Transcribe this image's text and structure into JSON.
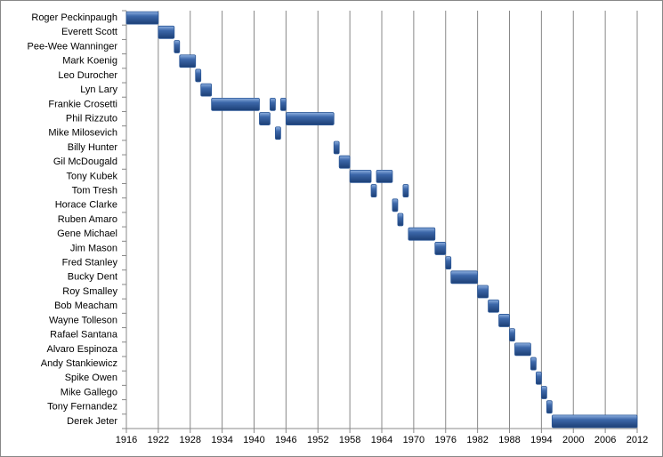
{
  "chart_data": {
    "type": "gantt",
    "tasks": [
      {
        "name": "Roger Peckinpaugh",
        "spans": [
          [
            1916,
            1922
          ]
        ]
      },
      {
        "name": "Everett Scott",
        "spans": [
          [
            1922,
            1925
          ]
        ]
      },
      {
        "name": "Pee-Wee Wanninger",
        "spans": [
          [
            1925,
            1926
          ]
        ]
      },
      {
        "name": "Mark Koenig",
        "spans": [
          [
            1926,
            1929
          ]
        ]
      },
      {
        "name": "Leo Durocher",
        "spans": [
          [
            1929,
            1930
          ]
        ]
      },
      {
        "name": "Lyn Lary",
        "spans": [
          [
            1930,
            1932
          ]
        ]
      },
      {
        "name": "Frankie Crosetti",
        "spans": [
          [
            1932,
            1941
          ],
          [
            1943,
            1944
          ],
          [
            1945,
            1946
          ]
        ]
      },
      {
        "name": "Phil Rizzuto",
        "spans": [
          [
            1941,
            1943
          ],
          [
            1946,
            1955
          ]
        ]
      },
      {
        "name": "Mike Milosevich",
        "spans": [
          [
            1944,
            1945
          ]
        ]
      },
      {
        "name": "Billy Hunter",
        "spans": [
          [
            1955,
            1956
          ]
        ]
      },
      {
        "name": "Gil McDougald",
        "spans": [
          [
            1956,
            1958
          ]
        ]
      },
      {
        "name": "Tony Kubek",
        "spans": [
          [
            1958,
            1962
          ],
          [
            1963,
            1966
          ]
        ]
      },
      {
        "name": "Tom Tresh",
        "spans": [
          [
            1962,
            1963
          ],
          [
            1968,
            1969
          ]
        ]
      },
      {
        "name": "Horace Clarke",
        "spans": [
          [
            1966,
            1967
          ]
        ]
      },
      {
        "name": "Ruben Amaro",
        "spans": [
          [
            1967,
            1968
          ]
        ]
      },
      {
        "name": "Gene Michael",
        "spans": [
          [
            1969,
            1974
          ]
        ]
      },
      {
        "name": "Jim Mason",
        "spans": [
          [
            1974,
            1976
          ]
        ]
      },
      {
        "name": "Fred Stanley",
        "spans": [
          [
            1976,
            1977
          ]
        ]
      },
      {
        "name": "Bucky Dent",
        "spans": [
          [
            1977,
            1982
          ]
        ]
      },
      {
        "name": "Roy Smalley",
        "spans": [
          [
            1982,
            1984
          ]
        ]
      },
      {
        "name": "Bob Meacham",
        "spans": [
          [
            1984,
            1986
          ]
        ]
      },
      {
        "name": "Wayne Tolleson",
        "spans": [
          [
            1986,
            1988
          ]
        ]
      },
      {
        "name": "Rafael Santana",
        "spans": [
          [
            1988,
            1989
          ]
        ]
      },
      {
        "name": "Alvaro Espinoza",
        "spans": [
          [
            1989,
            1992
          ]
        ]
      },
      {
        "name": "Andy Stankiewicz",
        "spans": [
          [
            1992,
            1993
          ]
        ]
      },
      {
        "name": "Spike Owen",
        "spans": [
          [
            1993,
            1994
          ]
        ]
      },
      {
        "name": "Mike Gallego",
        "spans": [
          [
            1994,
            1995
          ]
        ]
      },
      {
        "name": "Tony Fernandez",
        "spans": [
          [
            1995,
            1996
          ]
        ]
      },
      {
        "name": "Derek Jeter",
        "spans": [
          [
            1996,
            2012
          ]
        ]
      }
    ],
    "color": "#2b5797",
    "xlim": [
      1916,
      2012
    ],
    "xticks": [
      1916,
      1922,
      1928,
      1934,
      1940,
      1946,
      1952,
      1958,
      1964,
      1970,
      1976,
      1982,
      1988,
      1994,
      2000,
      2006,
      2012
    ],
    "grid": true
  }
}
